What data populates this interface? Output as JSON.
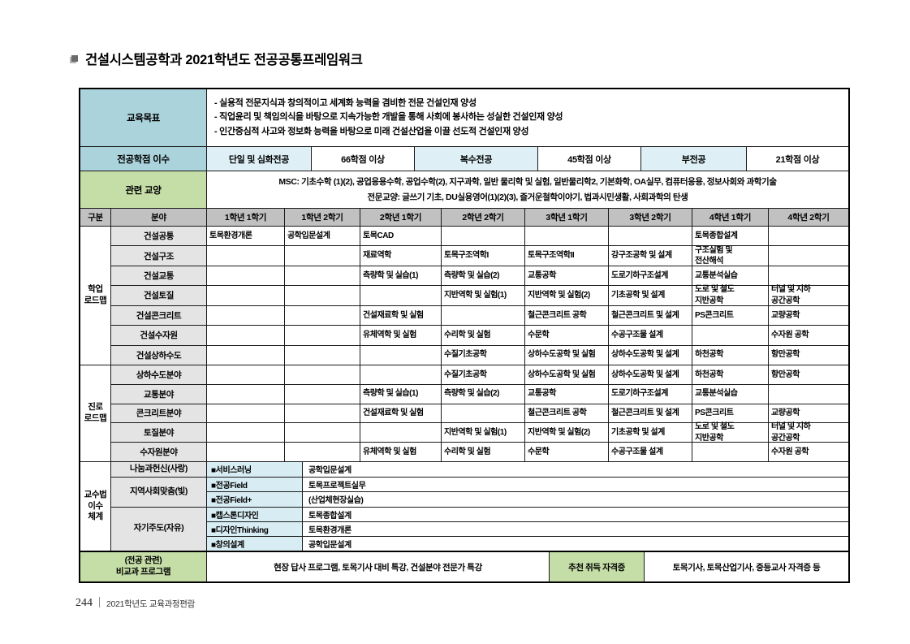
{
  "page": {
    "title": "건설시스템공학과 2021학년도 전공공통프레임워크",
    "footer_page": "244",
    "footer_text": "2021학년도 교육과정편람"
  },
  "colors": {
    "accent_teal": "#abd3dc",
    "accent_green": "#c5dda6",
    "accent_pale_blue": "#def0f6",
    "accent_method_blue": "#d8edf3",
    "header_gray": "#c1c1c1",
    "field_gray": "#e4e4e4"
  },
  "goals": {
    "label": "교육목표",
    "items": [
      "- 실용적 전문지식과 창의적이고 세계화 능력을 겸비한 전문 건설인재 양성",
      "- 직업윤리 및 책임의식을 바탕으로 지속가능한 개발을 통해 사회에 봉사하는 성실한 건설인재 양성",
      "- 인간중심적 사고와 정보화 능력을 바탕으로 미래 건설산업을 이끌 선도적 건설인재 양성"
    ]
  },
  "credits": {
    "label": "전공학점 이수",
    "cells": [
      {
        "label": "단일 및 심화전공",
        "value": "66학점 이상"
      },
      {
        "label": "복수전공",
        "value": "45학점 이상"
      },
      {
        "label": "부전공",
        "value": "21학점 이상"
      }
    ]
  },
  "liberal": {
    "label": "관련 교양",
    "lines": [
      "MSC: 기초수학 (1)(2), 공업응용수학, 공업수학(2), 지구과학, 일반 물리학 및 실험, 일반물리학2, 기본화학, OA실무, 컴퓨터응용, 정보사회와 과학기술",
      "전문교양: 글쓰기 기초, DU실용영어(1)(2)(3), 즐거운철학이야기, 법과시민생활, 사회과학의 탄생"
    ]
  },
  "grid_header": {
    "category": "구분",
    "field": "분야",
    "semesters": [
      "1학년 1학기",
      "1학년 2학기",
      "2학년 1학기",
      "2학년 2학기",
      "3학년 1학기",
      "3학년 2학기",
      "4학년 1학기",
      "4학년 2학기"
    ]
  },
  "sections": [
    {
      "label": "학업\n로드맵",
      "rows": [
        {
          "field": "건설공통",
          "cells": [
            "토목환경개론",
            "공학입문설계",
            "토목CAD",
            "",
            "",
            "",
            "토목종합설계",
            ""
          ]
        },
        {
          "field": "건설구조",
          "cells": [
            "",
            "",
            "재료역학",
            "토목구조역학I",
            "토목구조역학II",
            "강구조공학 및 설계",
            "구조실험 및\n전산해석",
            ""
          ]
        },
        {
          "field": "건설교통",
          "cells": [
            "",
            "",
            "측량학 및 실습(1)",
            "측량학 및 실습(2)",
            "교통공학",
            "도로기하구조설계",
            "교통분석실습",
            ""
          ]
        },
        {
          "field": "건설토질",
          "cells": [
            "",
            "",
            "",
            "지반역학 및 실험(1)",
            "지반역학 및 실험(2)",
            "기초공학 및 설계",
            "도로 및 철도\n지반공학",
            "터널 및 지하\n공간공학"
          ]
        },
        {
          "field": "건설콘크리트",
          "cells": [
            "",
            "",
            "건설재료학 및 실험",
            "",
            "철근콘크리트 공학",
            "철근콘크리트 및 설계",
            "PS콘크리트",
            "교량공학"
          ]
        },
        {
          "field": "건설수자원",
          "cells": [
            "",
            "",
            "유체역학 및 실험",
            "수리학 및 실험",
            "수문학",
            "수공구조물 설계",
            "",
            "수자원 공학"
          ]
        },
        {
          "field": "건설상하수도",
          "cells": [
            "",
            "",
            "",
            "수질기초공학",
            "상하수도공학 및 실험",
            "상하수도공학 및 설계",
            "하천공학",
            "항만공학"
          ]
        }
      ]
    },
    {
      "label": "진로\n로드맵",
      "rows": [
        {
          "field": "상하수도분야",
          "cells": [
            "",
            "",
            "",
            "수질기초공학",
            "상하수도공학 및 실험",
            "상하수도공학 및 설계",
            "하천공학",
            "항만공학"
          ]
        },
        {
          "field": "교통분야",
          "cells": [
            "",
            "",
            "측량학 및 실습(1)",
            "측량학 및 실습(2)",
            "교통공학",
            "도로기하구조설계",
            "교통분석실습",
            ""
          ]
        },
        {
          "field": "콘크리트분야",
          "cells": [
            "",
            "",
            "건설재료학 및 실험",
            "",
            "철근콘크리트 공학",
            "철근콘크리트 및 설계",
            "PS콘크리트",
            "교량공학"
          ]
        },
        {
          "field": "토질분야",
          "cells": [
            "",
            "",
            "",
            "지반역학 및 실험(1)",
            "지반역학 및 실험(2)",
            "기초공학 및 설계",
            "도로 및 철도\n지반공학",
            "터널 및 지하\n공간공학"
          ]
        },
        {
          "field": "수자원분야",
          "cells": [
            "",
            "",
            "유체역학 및 실험",
            "수리학 및 실험",
            "수문학",
            "수공구조물 설계",
            "",
            "수자원 공학"
          ]
        }
      ]
    }
  ],
  "teaching": {
    "label": "교수법\n이수\n체계",
    "groups": [
      {
        "name": "나눔과헌신(사랑)",
        "rows": [
          {
            "method": "■서비스러닝",
            "course": "공학입문설계"
          }
        ]
      },
      {
        "name": "지역사회맞춤(빛)",
        "rows": [
          {
            "method": "■전공Field",
            "course": "토목프로젝트실무"
          },
          {
            "method": "■전공Field+",
            "course": "(산업체현장실습)"
          }
        ]
      },
      {
        "name": "자기주도(자유)",
        "rows": [
          {
            "method": "■캡스톤디자인",
            "course": "토목종합설계"
          },
          {
            "method": "■디자인Thinking",
            "course": "토목환경개론"
          },
          {
            "method": "■창의설계",
            "course": "공학입문설계"
          }
        ]
      }
    ]
  },
  "extra": {
    "label": "(전공 관련)\n비교과 프로그램",
    "programs": "현장 답사 프로그램, 토목기사 대비 특강, 건설분야 전문가 특강",
    "cert_label": "추천 취득 자격증",
    "certs": "토목기사, 토목산업기사, 중등교사 자격증 등"
  }
}
